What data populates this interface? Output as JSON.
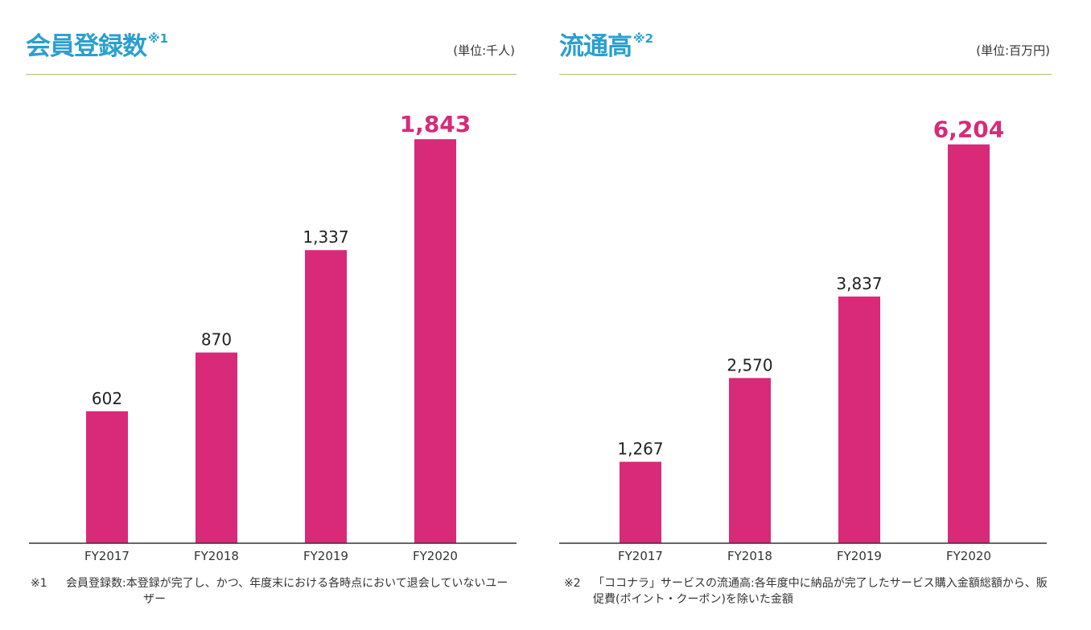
{
  "charts": [
    {
      "title": "会員登録数",
      "title_note": "※1",
      "unit": "(単位:千人)",
      "footnote_mark": "※1",
      "footnote": "会員登録数:本登録が完了し、かつ、年度末における各時点において退会していないユーザー"
    },
    {
      "title": "流通高",
      "title_note": "※2",
      "unit": "(単位:百万円)",
      "footnote_mark": "※2",
      "footnote": "「ココナラ」サービスの流通高:各年度中に納品が完了したサービス購入金額総額から、販促費(ポイント・クーポン)を除いた金額"
    }
  ],
  "colors": {
    "title": "#2a9fd0",
    "bar": "#d82a78",
    "highlight_label": "#d82a78",
    "label": "#222222",
    "axis": "#333333",
    "rule": "#a8c66c"
  },
  "chart_data": [
    {
      "type": "bar",
      "title": "会員登録数",
      "unit": "(単位:千人)",
      "categories": [
        "FY2017",
        "FY2018",
        "FY2019",
        "FY2020"
      ],
      "values": [
        602,
        870,
        1337,
        1843
      ],
      "data_labels": [
        "602",
        "870",
        "1,337",
        "1,843"
      ],
      "highlight_index": 3,
      "ylim": [
        0,
        1950
      ],
      "grid": false,
      "legend": "none"
    },
    {
      "type": "bar",
      "title": "流通高",
      "unit": "(単位:百万円)",
      "categories": [
        "FY2017",
        "FY2018",
        "FY2019",
        "FY2020"
      ],
      "values": [
        1267,
        2570,
        3837,
        6204
      ],
      "data_labels": [
        "1,267",
        "2,570",
        "3,837",
        "6,204"
      ],
      "highlight_index": 3,
      "ylim": [
        0,
        6650
      ],
      "grid": false,
      "legend": "none"
    }
  ]
}
